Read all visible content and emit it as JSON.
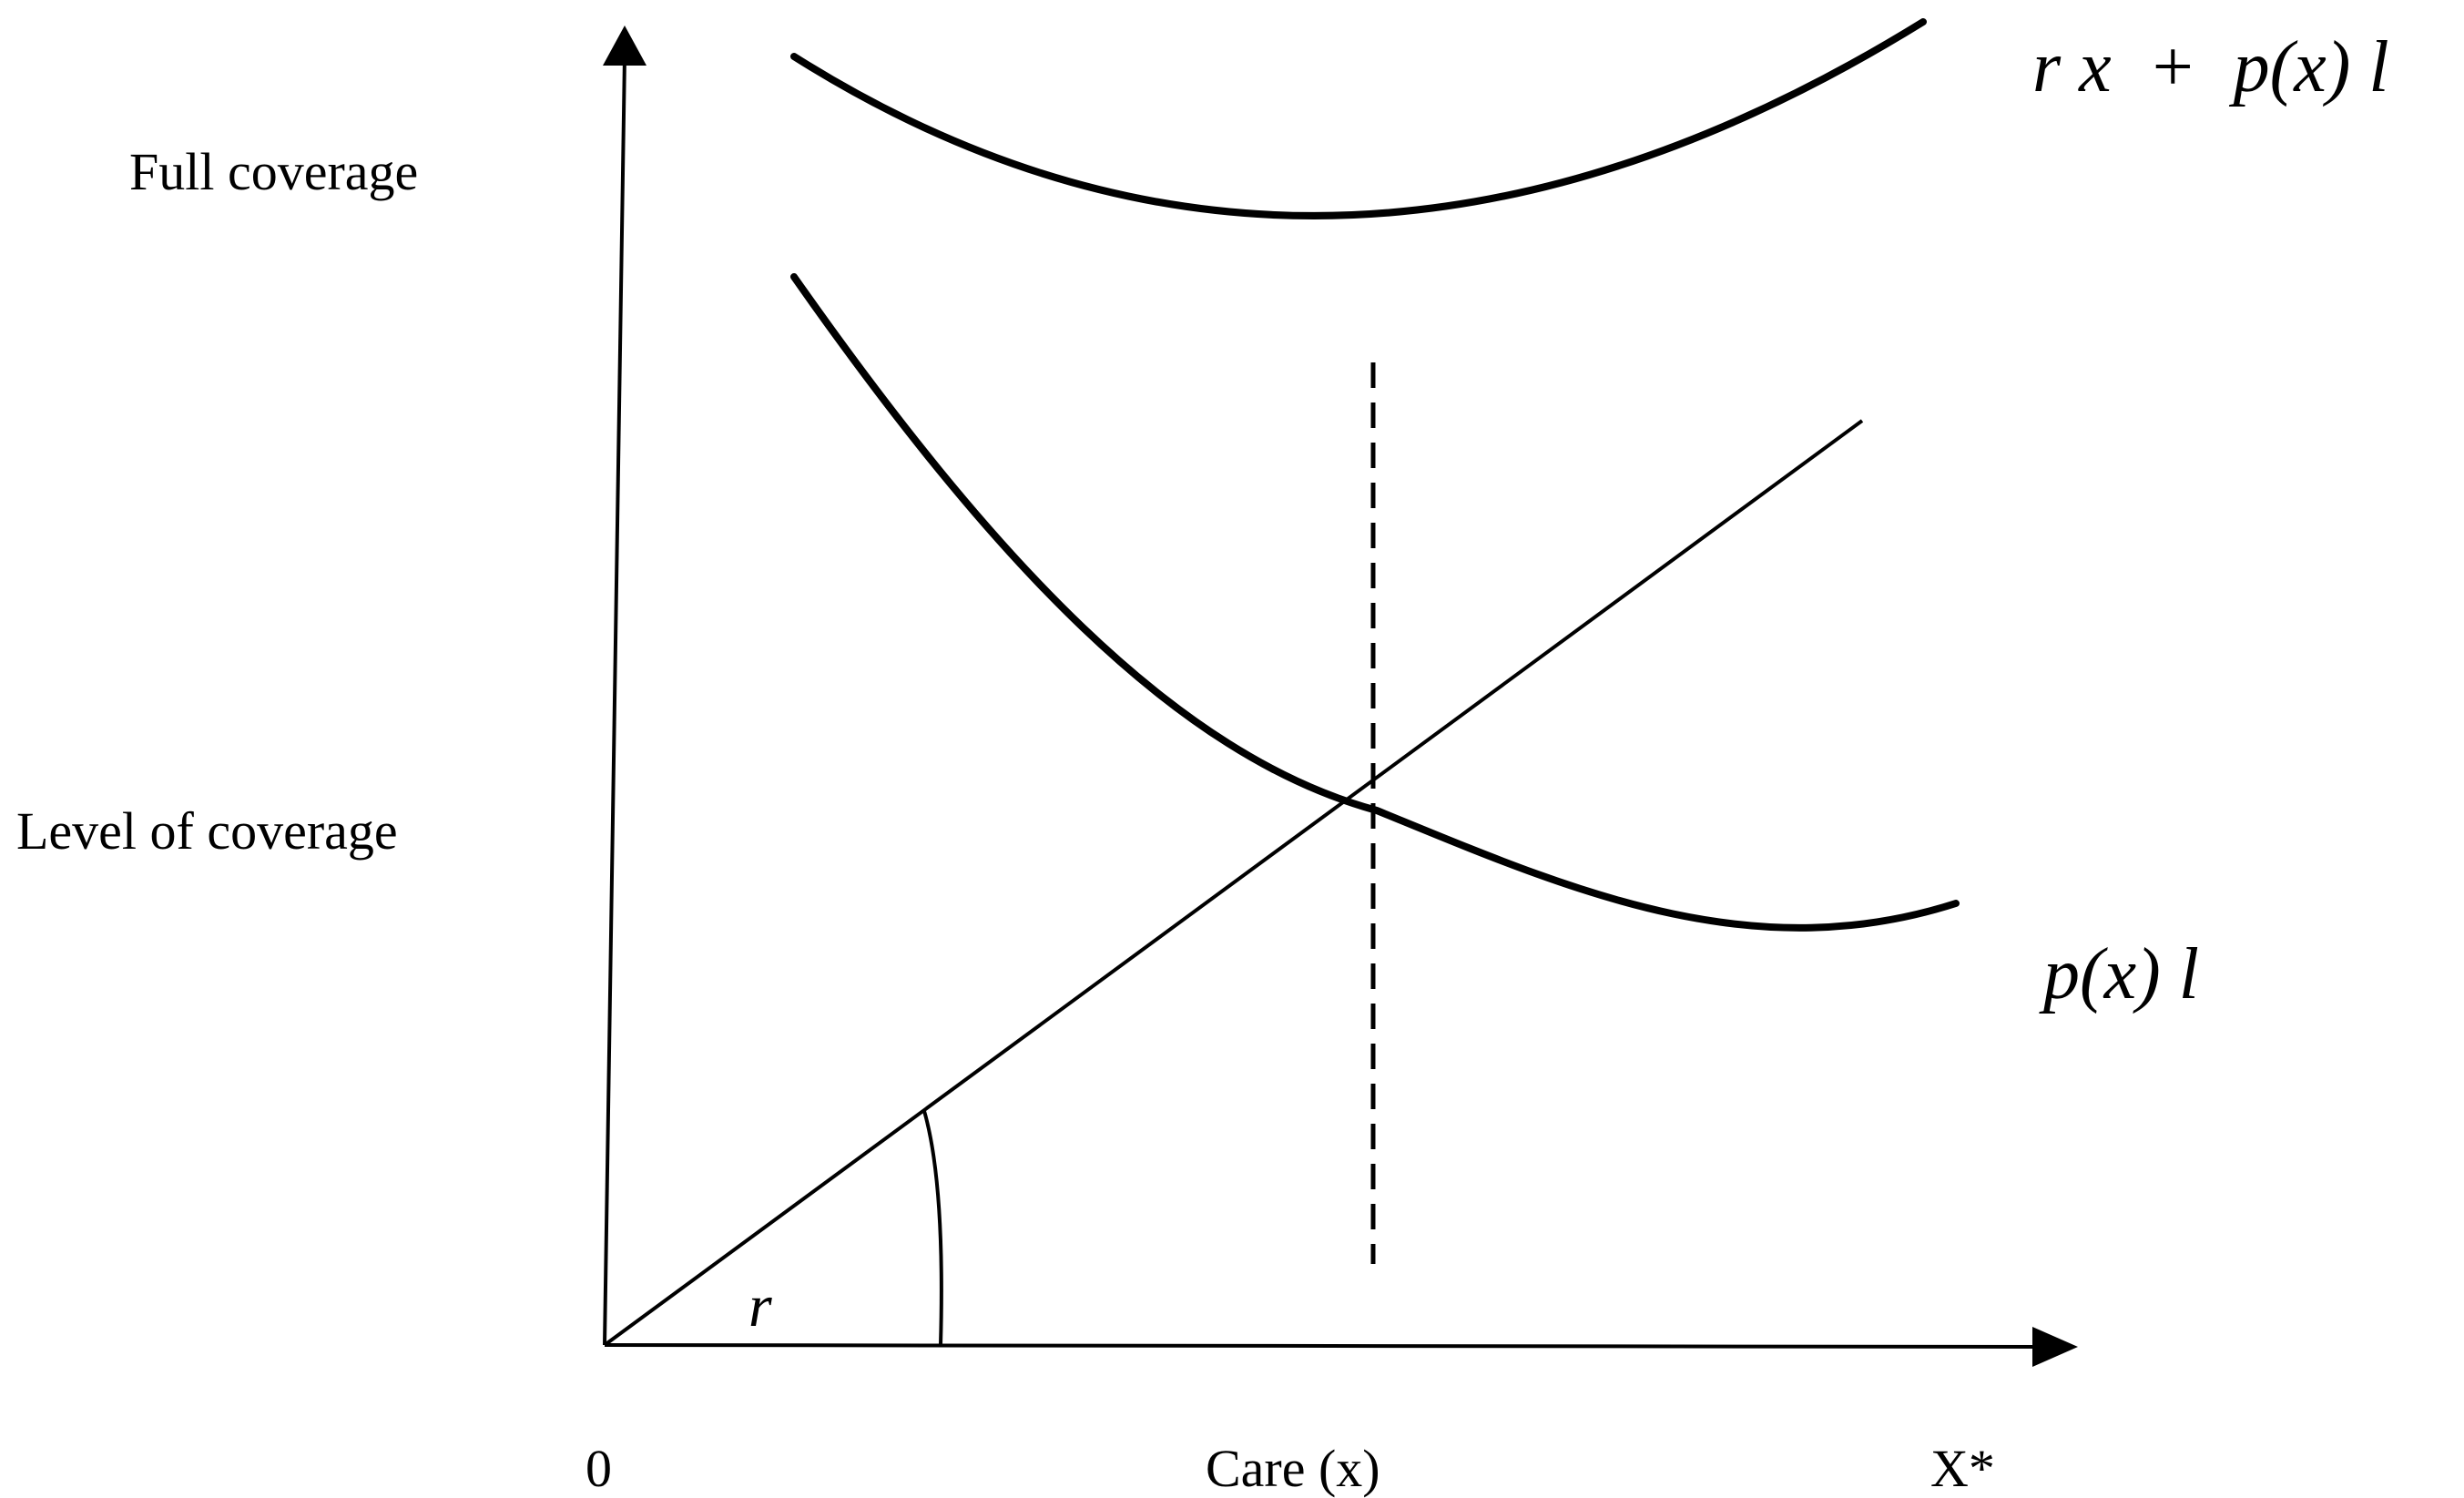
{
  "diagram": {
    "y_axis_labels": {
      "top": "Full coverage",
      "middle": "Level of coverage"
    },
    "x_axis_labels": {
      "origin": "0",
      "middle": "Care (x)",
      "end": "X*"
    },
    "curves": {
      "total_cost": "r x  +  p(x) l",
      "expected_loss": "p(x) l"
    },
    "angle_label": "r",
    "colors": {
      "ink": "#000000",
      "background": "#ffffff"
    }
  }
}
